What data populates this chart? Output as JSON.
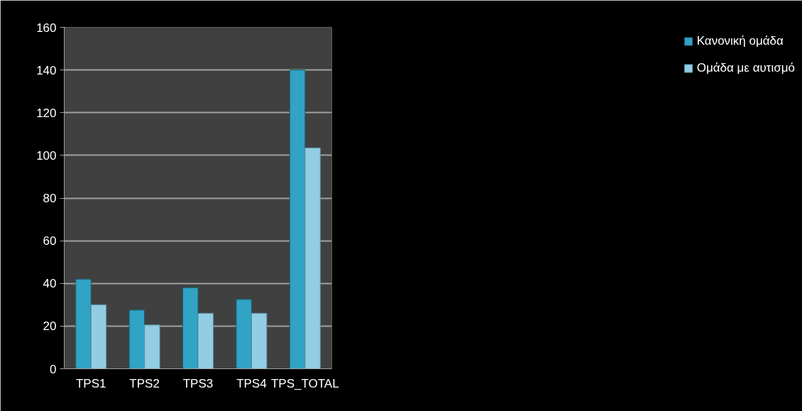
{
  "chart_data": {
    "type": "bar",
    "categories": [
      "TPS1",
      "TPS2",
      "TPS3",
      "TPS4",
      "TPS_TOTAL"
    ],
    "series": [
      {
        "name": "Κανονική ομάδα",
        "color": "#31a3c4",
        "values": [
          42,
          27.5,
          38,
          32.5,
          140
        ]
      },
      {
        "name": "Ομάδα με αυτισμό",
        "color": "#92cde3",
        "values": [
          30,
          20.5,
          26,
          26,
          103.5
        ]
      }
    ],
    "ylim": [
      0,
      160
    ],
    "yticks": [
      0,
      20,
      40,
      60,
      80,
      100,
      120,
      140,
      160
    ],
    "grid": "y",
    "legend": "right"
  }
}
